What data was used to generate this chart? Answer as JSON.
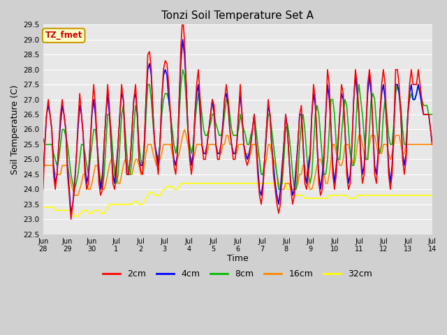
{
  "title": "Tonzi Soil Temperature Set A",
  "xlabel": "Time",
  "ylabel": "Soil Temperature (C)",
  "ylim": [
    22.5,
    29.5
  ],
  "fig_bg": "#d0d0d0",
  "plot_bg": "#e8e8e8",
  "annotation_text": "TZ_fmet",
  "annotation_bg": "#ffffcc",
  "annotation_fg": "#cc0000",
  "annotation_border": "#cc9900",
  "series_colors": [
    "#ff0000",
    "#0000ff",
    "#00bb00",
    "#ff8800",
    "#ffff00"
  ],
  "series_labels": [
    "2cm",
    "4cm",
    "8cm",
    "16cm",
    "32cm"
  ],
  "line_width": 1.2,
  "t2": [
    24.0,
    25.5,
    26.5,
    27.0,
    26.5,
    26.0,
    24.5,
    24.0,
    24.5,
    25.5,
    26.5,
    27.0,
    26.5,
    26.0,
    24.5,
    23.8,
    23.0,
    23.5,
    24.0,
    25.0,
    26.2,
    27.2,
    26.5,
    25.8,
    24.5,
    24.0,
    24.2,
    25.5,
    26.6,
    27.5,
    26.8,
    25.5,
    24.2,
    23.8,
    24.0,
    25.5,
    26.5,
    27.5,
    26.8,
    25.5,
    24.2,
    24.0,
    24.5,
    25.5,
    26.5,
    27.5,
    27.0,
    25.5,
    24.5,
    24.5,
    25.0,
    26.0,
    27.0,
    27.5,
    26.5,
    25.0,
    24.6,
    24.5,
    25.5,
    27.0,
    28.5,
    28.6,
    28.0,
    26.5,
    25.5,
    25.0,
    24.5,
    25.5,
    27.0,
    28.0,
    28.3,
    28.2,
    27.5,
    26.5,
    25.5,
    24.8,
    24.5,
    25.2,
    27.0,
    28.8,
    29.8,
    29.0,
    27.5,
    26.0,
    25.0,
    24.5,
    25.0,
    26.5,
    27.5,
    28.0,
    27.0,
    25.5,
    25.0,
    25.0,
    25.5,
    26.0,
    26.5,
    27.0,
    26.8,
    25.5,
    25.0,
    25.0,
    25.5,
    26.0,
    27.0,
    27.5,
    27.0,
    26.0,
    25.5,
    25.0,
    25.0,
    25.5,
    26.5,
    27.5,
    26.5,
    25.5,
    25.0,
    24.8,
    25.0,
    25.5,
    26.0,
    26.5,
    25.5,
    24.5,
    23.8,
    23.5,
    24.0,
    25.0,
    26.0,
    27.0,
    26.5,
    25.5,
    24.5,
    24.0,
    23.5,
    23.2,
    23.5,
    24.5,
    25.5,
    26.5,
    26.0,
    25.0,
    24.0,
    23.5,
    23.8,
    24.5,
    25.5,
    26.5,
    26.8,
    25.5,
    24.2,
    24.0,
    24.5,
    25.0,
    26.5,
    27.5,
    27.0,
    25.5,
    24.2,
    23.8,
    24.0,
    25.0,
    26.5,
    28.0,
    27.5,
    26.0,
    24.5,
    24.0,
    24.5,
    25.5,
    26.5,
    27.5,
    27.2,
    26.0,
    24.5,
    24.0,
    24.2,
    25.5,
    27.0,
    28.0,
    27.5,
    26.5,
    25.0,
    24.2,
    24.5,
    26.0,
    27.5,
    28.0,
    27.5,
    26.0,
    24.5,
    24.2,
    25.0,
    26.5,
    27.5,
    28.0,
    27.5,
    26.0,
    24.5,
    24.0,
    24.5,
    26.0,
    28.0,
    28.0,
    27.5,
    26.5,
    25.0,
    24.5,
    25.0,
    26.5,
    27.5,
    28.0,
    27.5,
    27.5,
    27.5,
    28.0,
    27.5,
    27.0,
    26.5,
    26.5,
    26.5,
    26.5,
    26.0,
    25.5
  ],
  "t4": [
    24.5,
    25.5,
    26.5,
    26.8,
    26.5,
    26.0,
    24.8,
    24.2,
    24.5,
    25.5,
    26.2,
    26.8,
    26.5,
    26.0,
    24.8,
    24.0,
    23.2,
    23.5,
    24.2,
    25.0,
    26.0,
    26.8,
    26.5,
    25.8,
    24.8,
    24.2,
    24.5,
    25.5,
    26.5,
    27.0,
    26.5,
    25.5,
    24.5,
    24.0,
    24.5,
    25.5,
    26.5,
    27.2,
    26.5,
    25.5,
    24.5,
    24.2,
    24.8,
    25.5,
    26.5,
    27.2,
    27.0,
    25.5,
    24.5,
    24.5,
    25.0,
    26.0,
    27.0,
    27.2,
    26.5,
    25.0,
    24.8,
    24.8,
    25.5,
    27.0,
    28.0,
    28.2,
    27.8,
    26.5,
    25.5,
    25.2,
    24.8,
    25.5,
    27.0,
    27.8,
    28.0,
    27.8,
    27.0,
    26.5,
    25.5,
    25.0,
    24.8,
    25.2,
    27.0,
    28.3,
    29.0,
    28.5,
    27.5,
    26.0,
    25.2,
    24.8,
    25.2,
    26.5,
    27.2,
    27.5,
    26.5,
    25.5,
    25.2,
    25.2,
    25.5,
    26.0,
    26.5,
    27.0,
    26.5,
    25.5,
    25.2,
    25.2,
    25.5,
    26.2,
    27.0,
    27.2,
    26.8,
    26.0,
    25.5,
    25.2,
    25.2,
    25.5,
    26.5,
    27.2,
    26.5,
    25.5,
    25.2,
    25.0,
    25.2,
    25.5,
    26.0,
    26.5,
    25.5,
    24.8,
    24.0,
    23.8,
    24.2,
    25.0,
    26.0,
    26.8,
    26.5,
    25.5,
    24.8,
    24.2,
    23.8,
    23.5,
    24.0,
    24.8,
    25.5,
    26.5,
    26.0,
    25.0,
    24.2,
    23.8,
    24.0,
    24.8,
    25.5,
    26.5,
    26.5,
    25.5,
    24.5,
    24.2,
    24.8,
    25.2,
    26.5,
    27.2,
    26.8,
    25.5,
    24.5,
    24.0,
    24.5,
    25.2,
    26.5,
    27.5,
    27.0,
    26.0,
    24.8,
    24.2,
    24.8,
    25.5,
    26.5,
    27.2,
    27.0,
    26.0,
    24.8,
    24.2,
    24.5,
    25.5,
    27.0,
    27.8,
    27.2,
    26.5,
    25.2,
    24.5,
    24.8,
    26.0,
    27.2,
    27.8,
    27.2,
    26.0,
    24.8,
    24.5,
    25.2,
    26.5,
    27.2,
    27.5,
    27.0,
    26.0,
    24.8,
    24.2,
    24.8,
    26.0,
    27.5,
    27.5,
    27.2,
    26.5,
    25.2,
    24.8,
    25.2,
    26.5,
    27.2,
    27.5,
    27.0,
    27.0,
    27.2,
    27.5,
    27.2,
    26.8,
    26.5,
    26.5,
    26.5,
    26.5,
    26.0,
    25.5
  ],
  "t8": [
    25.7,
    25.5,
    25.5,
    25.5,
    25.5,
    25.5,
    25.2,
    25.0,
    24.8,
    25.0,
    25.5,
    26.0,
    26.0,
    25.8,
    25.5,
    25.0,
    24.5,
    24.2,
    24.0,
    24.2,
    24.5,
    25.0,
    25.5,
    25.5,
    25.2,
    24.8,
    24.5,
    25.0,
    25.5,
    26.0,
    26.0,
    25.5,
    24.8,
    24.2,
    24.0,
    24.5,
    25.5,
    26.5,
    26.5,
    26.0,
    25.2,
    24.5,
    24.2,
    24.5,
    25.5,
    26.5,
    26.8,
    26.0,
    25.2,
    24.5,
    24.5,
    25.0,
    26.0,
    26.8,
    26.5,
    25.5,
    25.0,
    24.8,
    25.2,
    26.5,
    27.5,
    27.5,
    27.0,
    26.2,
    25.5,
    25.2,
    25.0,
    25.5,
    26.5,
    27.0,
    27.2,
    27.2,
    27.0,
    26.5,
    26.0,
    25.5,
    25.2,
    25.5,
    26.5,
    27.5,
    28.0,
    27.8,
    27.0,
    26.0,
    25.5,
    25.2,
    25.5,
    26.2,
    26.8,
    27.2,
    27.0,
    26.5,
    26.0,
    25.8,
    25.8,
    26.0,
    26.2,
    26.5,
    26.5,
    26.2,
    26.0,
    25.8,
    25.8,
    26.0,
    26.5,
    27.0,
    27.0,
    26.5,
    26.0,
    25.8,
    25.8,
    25.8,
    26.0,
    26.5,
    26.2,
    26.0,
    25.8,
    25.5,
    25.5,
    25.8,
    26.0,
    26.5,
    26.0,
    25.5,
    25.0,
    24.5,
    24.5,
    25.0,
    25.8,
    26.5,
    26.5,
    26.0,
    25.5,
    25.0,
    24.5,
    24.0,
    24.0,
    24.2,
    25.0,
    26.0,
    26.2,
    25.8,
    25.2,
    24.5,
    24.0,
    24.0,
    24.5,
    25.5,
    26.2,
    26.5,
    26.0,
    25.2,
    24.5,
    24.2,
    24.5,
    25.5,
    26.5,
    26.8,
    26.5,
    25.8,
    25.0,
    24.5,
    24.5,
    25.0,
    26.0,
    27.0,
    27.0,
    26.5,
    25.5,
    25.0,
    25.0,
    25.8,
    26.5,
    27.0,
    26.8,
    26.0,
    25.2,
    24.8,
    24.8,
    25.8,
    27.0,
    27.5,
    27.0,
    26.5,
    25.8,
    25.0,
    25.0,
    26.0,
    27.0,
    27.2,
    27.0,
    26.2,
    25.5,
    25.2,
    25.5,
    26.5,
    27.0,
    26.5,
    25.8,
    25.5,
    25.5,
    26.2,
    27.2,
    27.5,
    27.2,
    26.8,
    26.0,
    25.5,
    25.5,
    26.5,
    27.0,
    27.2,
    27.0,
    27.0,
    27.2,
    27.5,
    27.2,
    27.0,
    26.8,
    26.8,
    26.8,
    26.5,
    26.5,
    26.5
  ],
  "t16": [
    25.0,
    24.8,
    24.8,
    24.8,
    24.8,
    24.8,
    24.8,
    24.5,
    24.5,
    24.5,
    24.5,
    24.8,
    24.8,
    24.8,
    24.8,
    24.5,
    24.2,
    24.0,
    23.8,
    23.8,
    23.8,
    24.0,
    24.2,
    24.5,
    24.5,
    24.2,
    24.0,
    24.0,
    24.2,
    24.5,
    24.8,
    24.8,
    24.5,
    24.2,
    24.0,
    24.0,
    24.2,
    24.5,
    24.8,
    25.0,
    25.0,
    24.8,
    24.5,
    24.2,
    24.2,
    24.5,
    24.8,
    25.0,
    24.8,
    24.5,
    24.5,
    24.5,
    24.8,
    25.0,
    25.0,
    24.8,
    24.5,
    24.5,
    24.8,
    25.2,
    25.5,
    25.5,
    25.5,
    25.2,
    25.0,
    24.8,
    24.8,
    25.0,
    25.2,
    25.5,
    25.5,
    25.5,
    25.5,
    25.5,
    25.2,
    25.0,
    24.8,
    25.0,
    25.2,
    25.5,
    25.8,
    26.0,
    25.8,
    25.5,
    25.2,
    25.0,
    25.0,
    25.2,
    25.5,
    25.5,
    25.5,
    25.5,
    25.2,
    25.2,
    25.2,
    25.5,
    25.5,
    25.5,
    25.5,
    25.5,
    25.2,
    25.2,
    25.2,
    25.5,
    25.5,
    25.8,
    25.8,
    25.5,
    25.5,
    25.2,
    25.2,
    25.2,
    25.5,
    25.5,
    25.5,
    25.5,
    25.2,
    25.2,
    25.0,
    25.2,
    25.5,
    25.5,
    25.5,
    25.2,
    25.0,
    24.5,
    24.5,
    24.8,
    25.0,
    25.5,
    25.5,
    25.2,
    25.0,
    24.8,
    24.5,
    24.2,
    24.0,
    24.0,
    24.0,
    24.2,
    24.2,
    24.2,
    24.0,
    24.0,
    24.0,
    24.0,
    24.2,
    24.5,
    24.5,
    24.8,
    24.8,
    24.5,
    24.2,
    24.0,
    24.0,
    24.2,
    24.5,
    24.8,
    25.0,
    25.0,
    24.8,
    24.5,
    24.2,
    24.2,
    24.5,
    25.0,
    25.5,
    25.5,
    25.2,
    25.0,
    24.8,
    24.8,
    25.0,
    25.5,
    25.5,
    25.5,
    25.2,
    25.0,
    24.8,
    25.0,
    25.5,
    25.8,
    25.8,
    25.5,
    25.2,
    25.0,
    25.0,
    25.5,
    25.8,
    25.8,
    25.8,
    25.5,
    25.2,
    25.2,
    25.2,
    25.5,
    25.5,
    25.5,
    25.2,
    25.0,
    25.2,
    25.5,
    25.8,
    25.8,
    25.8,
    25.5,
    25.2,
    25.2,
    25.5,
    25.5,
    25.5,
    25.5,
    25.5,
    25.5,
    25.5,
    25.5,
    25.5,
    25.5,
    25.5,
    25.5,
    25.5,
    25.5,
    25.5,
    25.5
  ],
  "t32": [
    23.4,
    23.4,
    23.4,
    23.4,
    23.4,
    23.4,
    23.4,
    23.3,
    23.3,
    23.3,
    23.3,
    23.3,
    23.3,
    23.3,
    23.3,
    23.3,
    23.2,
    23.2,
    23.1,
    23.1,
    23.1,
    23.2,
    23.2,
    23.3,
    23.3,
    23.3,
    23.2,
    23.2,
    23.2,
    23.3,
    23.3,
    23.3,
    23.3,
    23.2,
    23.2,
    23.2,
    23.3,
    23.4,
    23.5,
    23.5,
    23.5,
    23.5,
    23.5,
    23.5,
    23.5,
    23.5,
    23.5,
    23.5,
    23.5,
    23.5,
    23.5,
    23.5,
    23.6,
    23.6,
    23.6,
    23.5,
    23.5,
    23.5,
    23.6,
    23.7,
    23.8,
    23.9,
    23.9,
    23.9,
    23.8,
    23.8,
    23.8,
    23.8,
    23.9,
    24.0,
    24.0,
    24.1,
    24.1,
    24.1,
    24.1,
    24.0,
    24.0,
    24.0,
    24.1,
    24.2,
    24.2,
    24.2,
    24.2,
    24.2,
    24.2,
    24.2,
    24.2,
    24.2,
    24.2,
    24.2,
    24.2,
    24.2,
    24.2,
    24.2,
    24.2,
    24.2,
    24.2,
    24.2,
    24.2,
    24.2,
    24.2,
    24.2,
    24.2,
    24.2,
    24.2,
    24.2,
    24.2,
    24.2,
    24.2,
    24.2,
    24.2,
    24.2,
    24.2,
    24.2,
    24.2,
    24.2,
    24.2,
    24.2,
    24.2,
    24.2,
    24.2,
    24.2,
    24.2,
    24.2,
    24.2,
    24.2,
    24.2,
    24.2,
    24.2,
    24.2,
    24.2,
    24.2,
    24.2,
    24.2,
    24.2,
    24.2,
    24.2,
    24.2,
    24.2,
    24.2,
    24.0,
    24.0,
    24.0,
    23.8,
    23.8,
    23.8,
    23.8,
    23.8,
    23.8,
    23.8,
    23.7,
    23.7,
    23.7,
    23.7,
    23.7,
    23.7,
    23.7,
    23.7,
    23.7,
    23.7,
    23.7,
    23.7,
    23.7,
    23.7,
    23.8,
    23.8,
    23.8,
    23.8,
    23.8,
    23.8,
    23.8,
    23.8,
    23.8,
    23.8,
    23.8,
    23.7,
    23.7,
    23.7,
    23.7,
    23.7,
    23.8,
    23.8,
    23.8,
    23.8,
    23.8,
    23.8,
    23.8,
    23.8,
    23.8,
    23.8,
    23.8,
    23.8,
    23.8,
    23.8,
    23.8,
    23.8,
    23.8,
    23.8,
    23.8,
    23.8,
    23.8,
    23.8,
    23.8,
    23.8,
    23.8,
    23.8,
    23.8,
    23.8,
    23.8,
    23.8,
    23.8,
    23.8,
    23.8,
    23.8,
    23.8,
    23.8,
    23.8,
    23.8,
    23.8,
    23.8,
    23.8,
    23.8,
    23.8,
    23.8
  ]
}
